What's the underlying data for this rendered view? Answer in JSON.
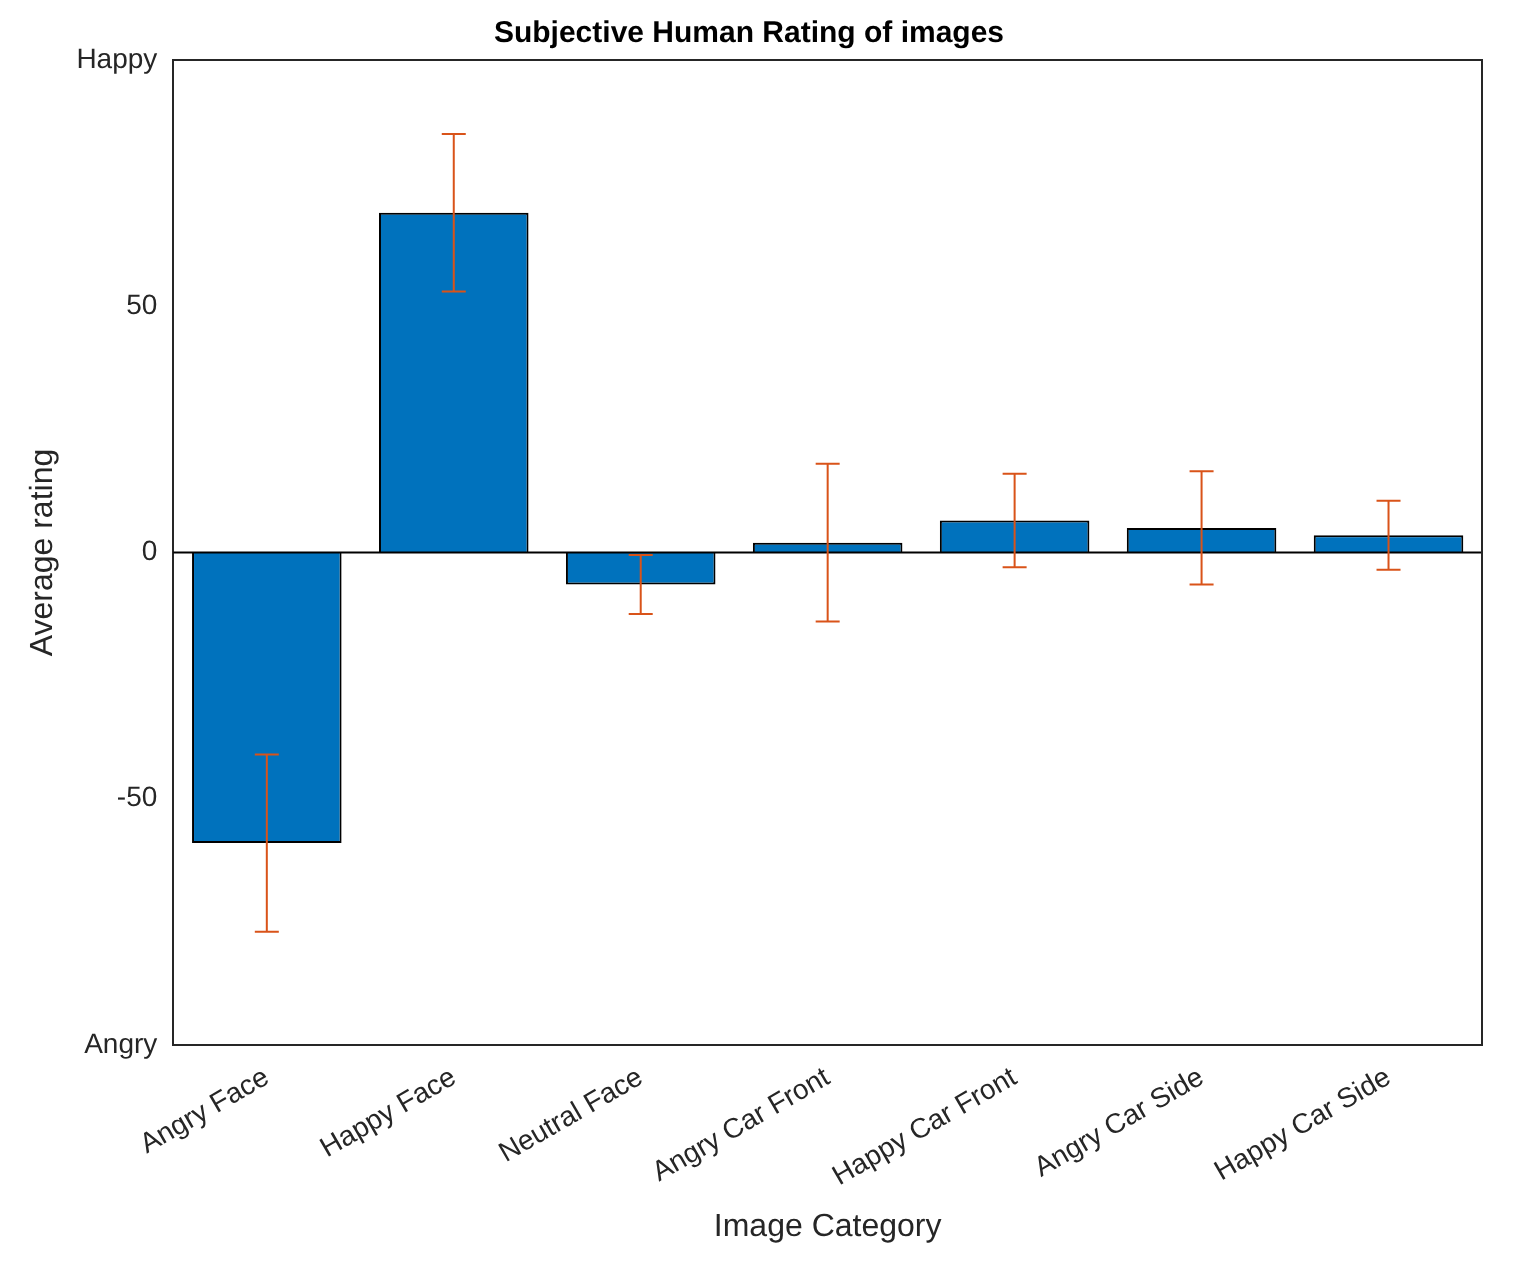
{
  "chart_data": {
    "type": "bar",
    "title": "Subjective Human Rating of images",
    "xlabel": "Image Category",
    "ylabel": "Average rating",
    "categories": [
      "Angry Face",
      "Happy Face",
      "Neutral Face",
      "Angry Car Front",
      "Happy Car Front",
      "Angry Car Side",
      "Happy Car Side"
    ],
    "values": [
      -59,
      69,
      -6.5,
      2,
      6.5,
      5,
      3.5
    ],
    "errors": [
      18,
      16,
      6,
      16,
      9.5,
      11.5,
      7
    ],
    "color": "#0072bd",
    "ylim": [
      -100,
      100
    ],
    "yticks": [
      {
        "value": -100,
        "label": "Angry"
      },
      -50,
      0,
      50,
      {
        "value": 100,
        "label": "Happy"
      }
    ],
    "ref_lines": [
      {
        "axis": "y",
        "value": 0,
        "color": "#000000"
      }
    ],
    "grid": false,
    "legend": false
  }
}
